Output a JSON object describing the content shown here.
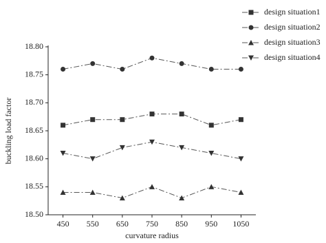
{
  "chart_data": {
    "type": "line",
    "x_label": "curvature radius",
    "y_label": "buckling load factor",
    "x": [
      450,
      550,
      650,
      750,
      850,
      950,
      1050
    ],
    "xlim": [
      400,
      1100
    ],
    "xticks": [
      450,
      550,
      650,
      750,
      850,
      950,
      1050
    ],
    "ylim": [
      18.5,
      18.8
    ],
    "yticks": [
      {
        "value": 18.5,
        "label": "18.50"
      },
      18.55,
      {
        "value": 18.6,
        "label": "18.60"
      },
      18.65,
      {
        "value": 18.7,
        "label": "18.70"
      },
      18.75,
      {
        "value": 18.8,
        "label": "18.80"
      }
    ],
    "series": [
      {
        "name": "design situation1",
        "color": "#333333",
        "marker": "square",
        "values": [
          18.66,
          18.67,
          18.67,
          18.68,
          18.68,
          18.66,
          18.67
        ]
      },
      {
        "name": "design situation2",
        "color": "#333333",
        "marker": "circle",
        "values": [
          18.76,
          18.77,
          18.76,
          18.78,
          18.77,
          18.76,
          18.76
        ]
      },
      {
        "name": "design situation3",
        "color": "#333333",
        "marker": "triangle-up",
        "values": [
          18.54,
          18.54,
          18.53,
          18.55,
          18.53,
          18.55,
          18.54
        ]
      },
      {
        "name": "design situation4",
        "color": "#333333",
        "marker": "triangle-down",
        "values": [
          18.61,
          18.6,
          18.62,
          18.63,
          18.62,
          18.61,
          18.6
        ]
      }
    ]
  }
}
